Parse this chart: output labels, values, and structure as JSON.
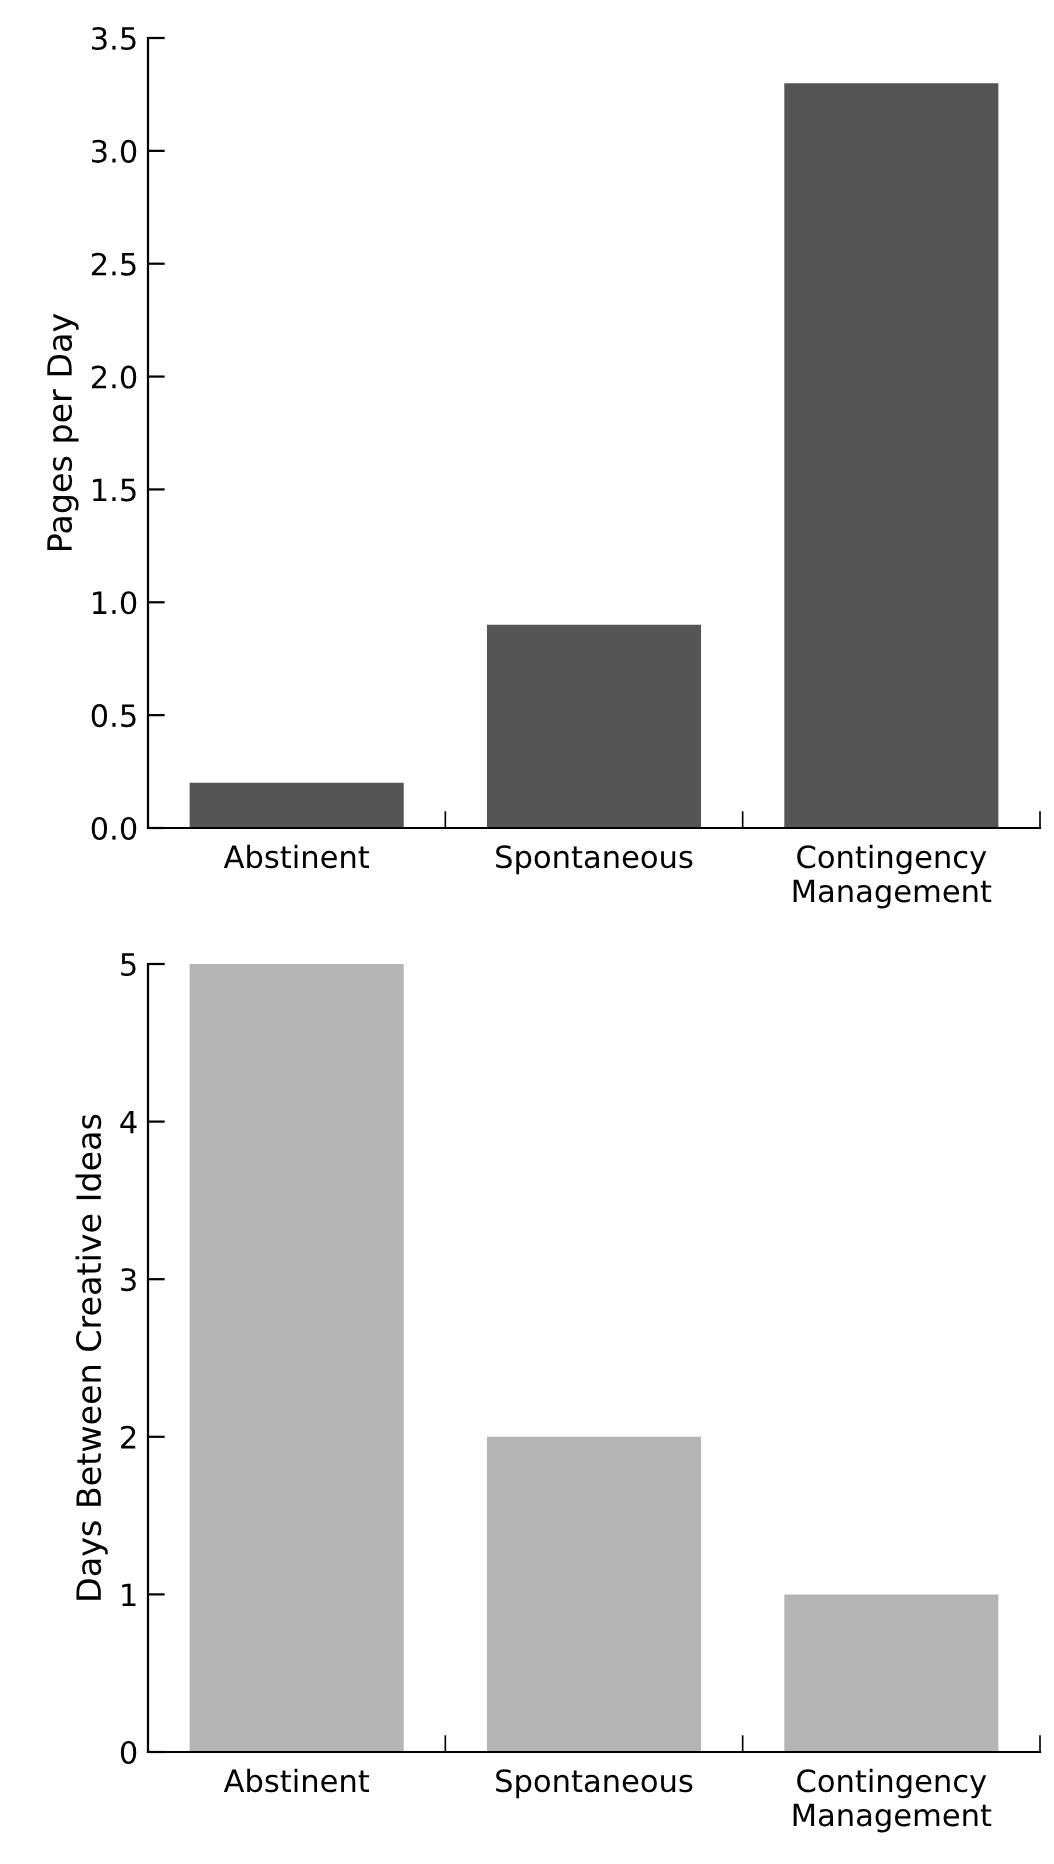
{
  "chart_data": [
    {
      "type": "bar",
      "categories": [
        "Abstinent",
        "Spontaneous",
        "Contingency\nManagement"
      ],
      "values": [
        0.2,
        0.9,
        3.3
      ],
      "color": "#555555",
      "ylabel": "Pages per Day",
      "ylim": [
        0,
        3.5
      ],
      "yticks": [
        {
          "value": 0,
          "label": "0.0"
        },
        {
          "value": 0.5,
          "label": "0.5"
        },
        {
          "value": 1,
          "label": "1.0"
        },
        {
          "value": 1.5,
          "label": "1.5"
        },
        {
          "value": 2,
          "label": "2.0"
        },
        {
          "value": 2.5,
          "label": "2.5"
        },
        {
          "value": 3,
          "label": "3.0"
        },
        {
          "value": 3.5,
          "label": "3.5"
        }
      ],
      "grid": false
    },
    {
      "type": "bar",
      "categories": [
        "Abstinent",
        "Spontaneous",
        "Contingency\nManagement"
      ],
      "values": [
        5,
        2,
        1
      ],
      "color": "#b4b4b4",
      "ylabel": "Days Between Creative Ideas",
      "ylim": [
        0,
        5
      ],
      "yticks": [
        0,
        1,
        2,
        3,
        4,
        5
      ],
      "grid": false
    }
  ]
}
